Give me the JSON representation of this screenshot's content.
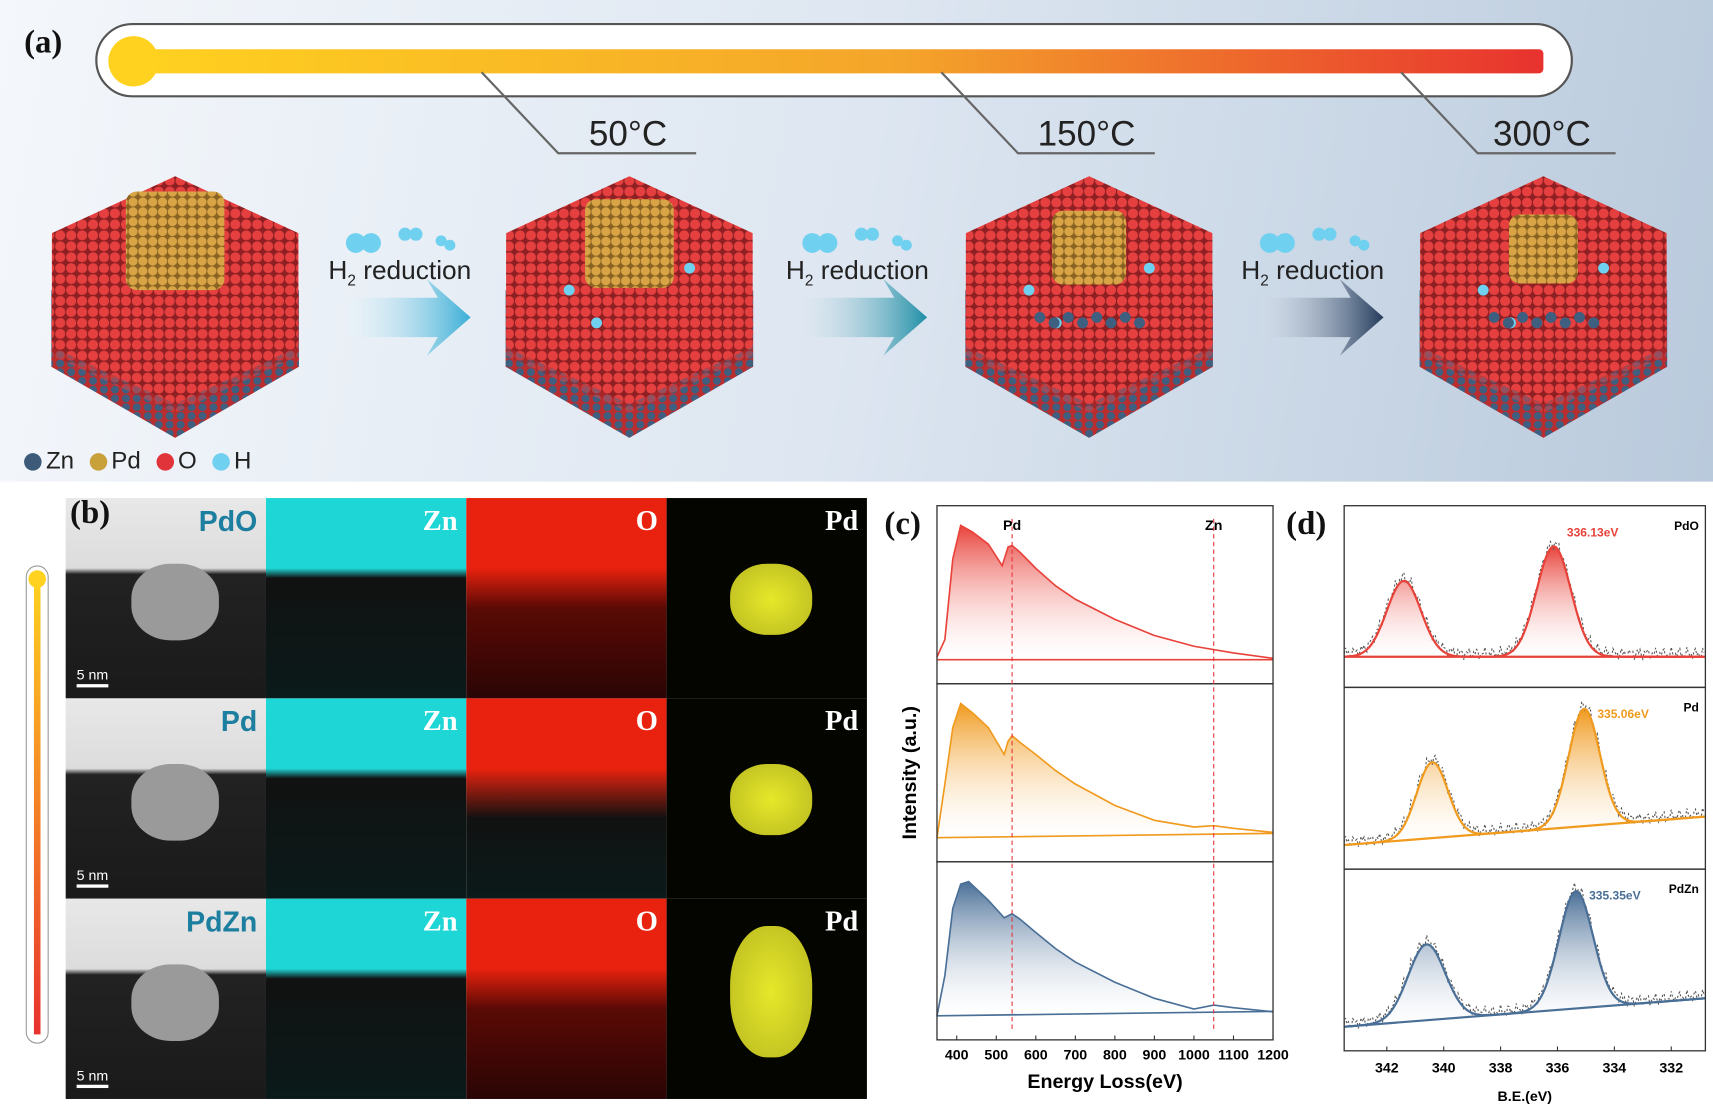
{
  "panel_a": {
    "label": "(a)",
    "temperatures": [
      "50°C",
      "150°C",
      "300°C"
    ],
    "step_label": "H",
    "step_sub": "2",
    "step_text": " reduction",
    "legend": [
      {
        "label": "Zn",
        "color": "#3d5a78"
      },
      {
        "label": "Pd",
        "color": "#c9a13a"
      },
      {
        "label": "O",
        "color": "#e0333a"
      },
      {
        "label": "H",
        "color": "#6fd0ef"
      }
    ],
    "colors": {
      "thermo_start": "#ffd21f",
      "thermo_end": "#e8322e",
      "oxide": "#e23a3a",
      "zn": "#3e5f80",
      "pd": "#d09b3a"
    }
  },
  "panel_b": {
    "label": "(b)",
    "rows": [
      {
        "sample": "PdO",
        "maps": [
          "Zn",
          "O",
          "Pd"
        ],
        "scale": "5 nm"
      },
      {
        "sample": "Pd",
        "maps": [
          "Zn",
          "O",
          "Pd"
        ],
        "scale": "5 nm"
      },
      {
        "sample": "PdZn",
        "maps": [
          "Zn",
          "O",
          "Pd"
        ],
        "scale": "5 nm"
      }
    ],
    "map_colors": {
      "Zn": "#1fd6d6",
      "O": "#e8220e",
      "Pd": "#e6e82a"
    }
  },
  "chart_data": [
    {
      "panel": "(c)",
      "type": "area",
      "xlabel": "Energy Loss(eV)",
      "ylabel": "Intensity (a.u.)",
      "xlim": [
        350,
        1200
      ],
      "xticks": [
        400,
        500,
        600,
        700,
        800,
        900,
        1000,
        1100,
        1200
      ],
      "markers": [
        {
          "label": "Pd",
          "x": 540
        },
        {
          "label": "Zn",
          "x": 1050
        }
      ],
      "series": [
        {
          "color": "#e8423a",
          "x": [
            350,
            370,
            390,
            410,
            440,
            480,
            515,
            530,
            540,
            560,
            600,
            650,
            700,
            800,
            900,
            1000,
            1100,
            1200
          ],
          "y": [
            0.02,
            0.15,
            0.75,
            1.0,
            0.95,
            0.86,
            0.7,
            0.84,
            0.85,
            0.8,
            0.68,
            0.55,
            0.45,
            0.3,
            0.18,
            0.1,
            0.05,
            0.01
          ]
        },
        {
          "color": "#f09a1e",
          "x": [
            350,
            370,
            390,
            410,
            440,
            480,
            520,
            530,
            540,
            560,
            600,
            650,
            700,
            800,
            900,
            1000,
            1050,
            1100,
            1200
          ],
          "y": [
            0.0,
            0.4,
            0.82,
            1.0,
            0.93,
            0.82,
            0.62,
            0.72,
            0.76,
            0.71,
            0.62,
            0.5,
            0.4,
            0.24,
            0.13,
            0.08,
            0.09,
            0.07,
            0.04
          ]
        },
        {
          "color": "#4a6f97",
          "x": [
            350,
            370,
            390,
            410,
            430,
            480,
            520,
            540,
            560,
            600,
            650,
            700,
            800,
            900,
            1000,
            1050,
            1100,
            1200
          ],
          "y": [
            0.0,
            0.3,
            0.8,
            0.98,
            1.0,
            0.86,
            0.73,
            0.76,
            0.72,
            0.62,
            0.5,
            0.4,
            0.25,
            0.13,
            0.05,
            0.08,
            0.06,
            0.03
          ]
        }
      ]
    },
    {
      "panel": "(d)",
      "type": "line",
      "xlabel": "B.E.(eV)",
      "xlim": [
        343.5,
        330.8
      ],
      "xticks": [
        342,
        340,
        338,
        336,
        334,
        332
      ],
      "series": [
        {
          "name": "PdO",
          "color": "#e8423a",
          "annotation": "336.13eV",
          "peaks": [
            {
              "center": 341.4,
              "height": 0.55,
              "width": 0.6
            },
            {
              "center": 336.13,
              "height": 0.8,
              "width": 0.6
            }
          ]
        },
        {
          "name": "Pd",
          "color": "#f09a1e",
          "annotation": "335.06eV",
          "peaks": [
            {
              "center": 340.4,
              "height": 0.55,
              "width": 0.55
            },
            {
              "center": 335.06,
              "height": 0.85,
              "width": 0.55
            }
          ]
        },
        {
          "name": "PdZn",
          "color": "#4a6f97",
          "annotation": "335.35eV",
          "peaks": [
            {
              "center": 340.6,
              "height": 0.55,
              "width": 0.65
            },
            {
              "center": 335.35,
              "height": 0.85,
              "width": 0.6
            }
          ]
        }
      ]
    }
  ]
}
